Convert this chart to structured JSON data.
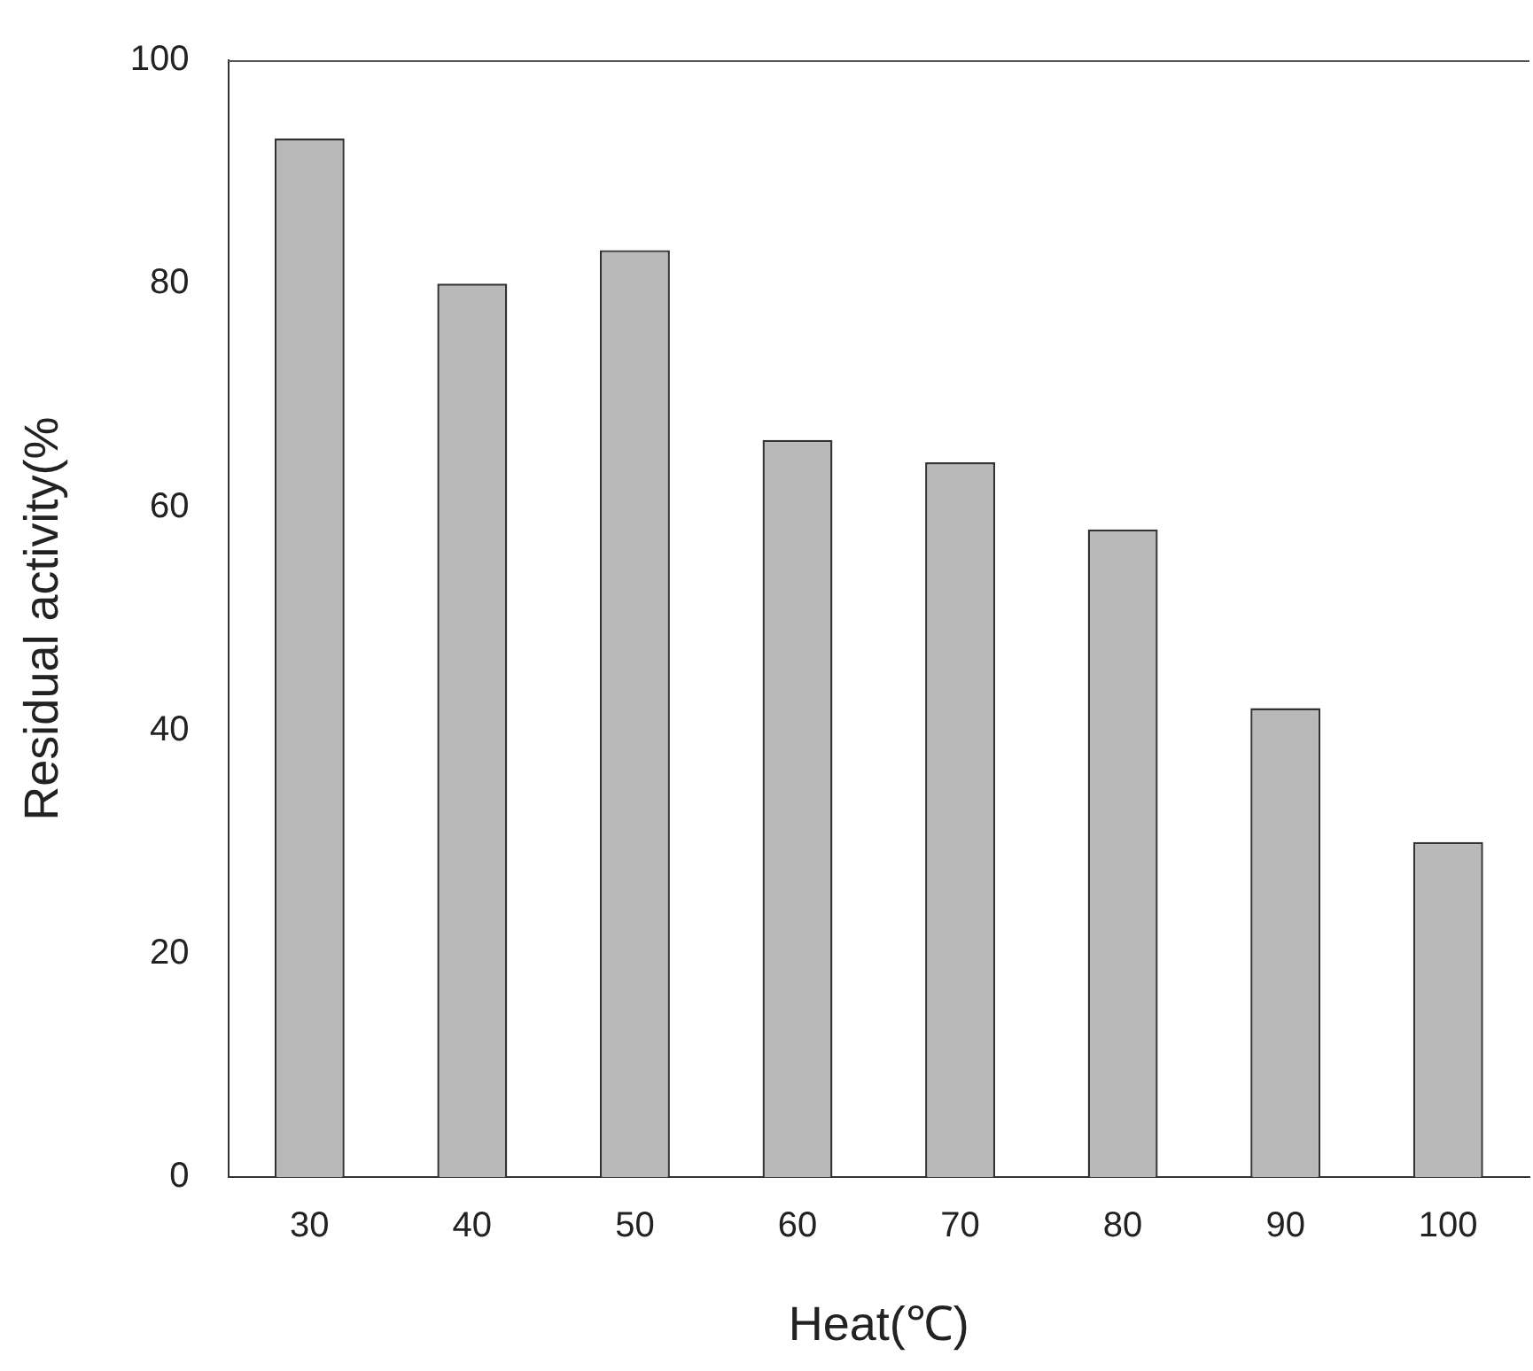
{
  "chart_data": {
    "type": "bar",
    "xlabel": "Heat(℃)",
    "ylabel": "Residual activity(%",
    "categories": [
      "30",
      "40",
      "50",
      "60",
      "70",
      "80",
      "90",
      "100"
    ],
    "values": [
      93,
      80,
      83,
      66,
      64,
      58,
      42,
      30
    ],
    "color": "#b9b9b9",
    "ylim": [
      0,
      100
    ],
    "yticks": [
      0,
      20,
      40,
      60,
      80,
      100
    ],
    "grid": false,
    "legend": false
  }
}
